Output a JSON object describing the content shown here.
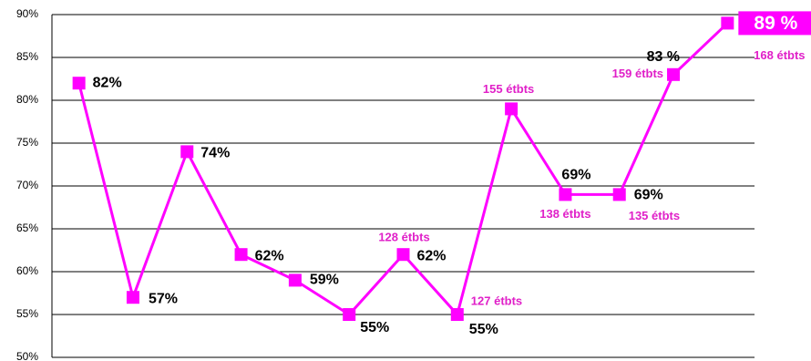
{
  "chart_data": {
    "type": "line",
    "categories": [
      null,
      null,
      null,
      null,
      null,
      null,
      null,
      null,
      null,
      null,
      null,
      null,
      null
    ],
    "series": [
      {
        "color": "#ff00ff",
        "values": [
          82,
          57,
          74,
          62,
          59,
          55,
          62,
          55,
          79,
          69,
          69,
          83,
          89
        ],
        "value_labels": [
          "82%",
          "57%",
          "74%",
          "62%",
          "59%",
          "55%",
          "62%",
          "55%",
          null,
          "69%",
          "69%",
          "83 %",
          "89 %"
        ],
        "notes": [
          null,
          null,
          null,
          null,
          null,
          null,
          "128 étbts",
          "127 étbts",
          "155 étbts",
          "138 étbts",
          "135 étbts",
          "159 étbts",
          "168 étbts"
        ]
      }
    ],
    "ylim": [
      50,
      90
    ],
    "yticks": [
      {
        "value": 50,
        "label": "50%"
      },
      {
        "value": 55,
        "label": "55%"
      },
      {
        "value": 60,
        "label": "60%"
      },
      {
        "value": 65,
        "label": "65%"
      },
      {
        "value": 70,
        "label": "70%"
      },
      {
        "value": 75,
        "label": "75%"
      },
      {
        "value": 80,
        "label": "80%"
      },
      {
        "value": 85,
        "label": "85%"
      },
      {
        "value": 90,
        "label": "90%"
      }
    ],
    "grid": true
  }
}
